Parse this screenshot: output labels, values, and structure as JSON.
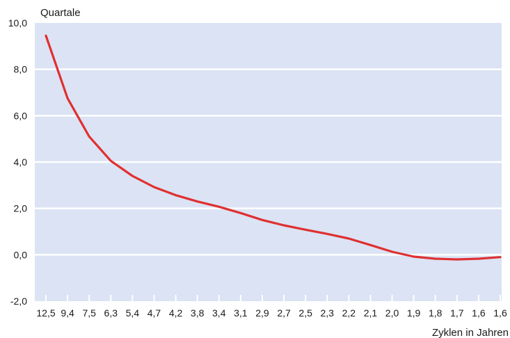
{
  "chart_data": {
    "type": "line",
    "ylabel": "Quartale",
    "xlabel": "Zyklen in Jahren",
    "categories": [
      "12,5",
      "9,4",
      "7,5",
      "6,3",
      "5,4",
      "4,7",
      "4,2",
      "3,8",
      "3,4",
      "3,1",
      "2,9",
      "2,7",
      "2,5",
      "2,3",
      "2,2",
      "2,1",
      "2,0",
      "1,9",
      "1,8",
      "1,7",
      "1,6",
      "1,6"
    ],
    "series": [
      {
        "values": [
          9.45,
          6.75,
          5.1,
          4.05,
          3.4,
          2.92,
          2.57,
          2.3,
          2.07,
          1.8,
          1.5,
          1.27,
          1.08,
          0.9,
          0.7,
          0.42,
          0.13,
          -0.08,
          -0.17,
          -0.2,
          -0.17,
          -0.1
        ]
      }
    ],
    "ylim": [
      -2.0,
      10.0
    ],
    "yticks": [
      "-2,0",
      "0,0",
      "2,0",
      "4,0",
      "6,0",
      "8,0",
      "10,0"
    ],
    "grid": true,
    "colors": {
      "plot_background": "#dbe3f4",
      "gridline": "#ffffff",
      "line": "#e03030",
      "tick_mark": "#ffffff"
    }
  }
}
